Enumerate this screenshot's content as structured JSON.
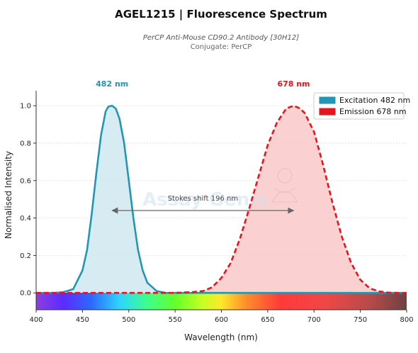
{
  "header": {
    "title": "AGEL1215  |  Fluorescence Spectrum",
    "subtitle": "PerCP Anti-Mouse CD90.2 Antibody [30H12]",
    "conjugate": "Conjugate: PerCP"
  },
  "watermark": {
    "text": "Assay Genie"
  },
  "chart_data": {
    "type": "line",
    "xlabel": "Wavelength (nm)",
    "ylabel": "Normalised Intensity",
    "xlim": [
      400,
      800
    ],
    "ylim": [
      -0.09,
      1.08
    ],
    "x_ticks": [
      400,
      450,
      500,
      550,
      600,
      650,
      700,
      750,
      800
    ],
    "y_ticks": [
      0.0,
      0.2,
      0.4,
      0.6,
      0.8,
      1.0
    ],
    "grid": "horizontal dotted",
    "legend_position": "top-right",
    "spectrum_bar": true,
    "series": [
      {
        "name": "Excitation  482 nm",
        "peak_label": "482 nm",
        "peak": 482,
        "style": "solid",
        "color": "#2196b5",
        "fill": "#cfe8f0",
        "x": [
          400,
          420,
          430,
          440,
          450,
          455,
          460,
          465,
          470,
          475,
          478,
          482,
          486,
          490,
          495,
          500,
          505,
          510,
          515,
          520,
          530,
          540,
          550,
          560,
          580,
          600,
          650,
          700,
          750,
          800
        ],
        "y": [
          0.0,
          0.0,
          0.005,
          0.02,
          0.12,
          0.23,
          0.42,
          0.64,
          0.84,
          0.97,
          0.995,
          1.0,
          0.985,
          0.93,
          0.8,
          0.6,
          0.4,
          0.23,
          0.12,
          0.055,
          0.01,
          0.0,
          0.0,
          0.0,
          0.0,
          0.0,
          0.0,
          0.0,
          0.0,
          0.0
        ]
      },
      {
        "name": "Emission  678 nm",
        "peak_label": "678 nm",
        "peak": 678,
        "style": "dashed",
        "color": "#e8141c",
        "fill": "#f9c8c8",
        "x": [
          400,
          500,
          550,
          570,
          580,
          590,
          600,
          610,
          620,
          630,
          640,
          650,
          660,
          670,
          678,
          685,
          690,
          700,
          710,
          720,
          730,
          740,
          750,
          760,
          770,
          780,
          790,
          800
        ],
        "y": [
          0.0,
          0.0,
          0.0,
          0.005,
          0.01,
          0.03,
          0.08,
          0.16,
          0.29,
          0.45,
          0.62,
          0.79,
          0.91,
          0.985,
          1.0,
          0.985,
          0.96,
          0.86,
          0.68,
          0.48,
          0.3,
          0.16,
          0.07,
          0.025,
          0.008,
          0.002,
          0.0,
          0.0
        ]
      }
    ],
    "annotation": {
      "text": "Stokes shift  196 nm",
      "from": 482,
      "to": 678,
      "y": 0.44
    }
  }
}
